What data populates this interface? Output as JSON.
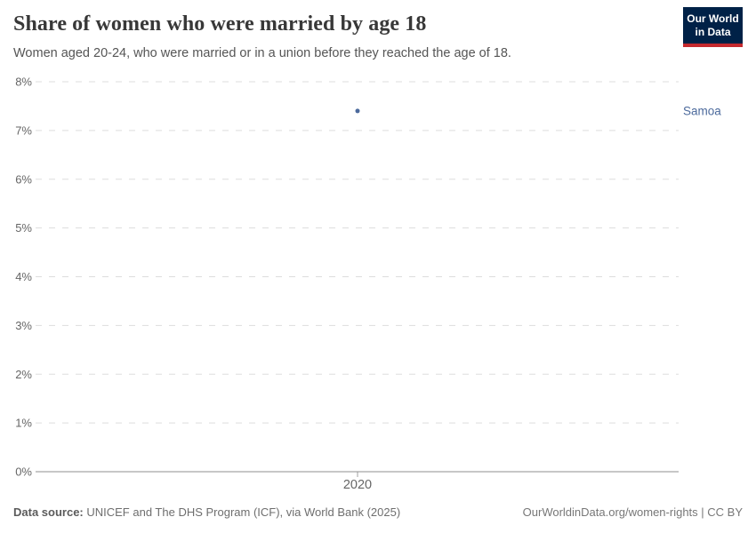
{
  "header": {
    "title": "Share of women who were married by age 18",
    "subtitle": "Women aged 20-24, who were married or in a union before they reached the age of 18.",
    "logo": {
      "line1": "Our World",
      "line2": "in Data"
    }
  },
  "chart_data": {
    "type": "scatter",
    "title": "Share of women who were married by age 18",
    "subtitle": "Women aged 20-24, who were married or in a union before they reached the age of 18.",
    "xlabel": "",
    "ylabel": "",
    "ylim": [
      0,
      8
    ],
    "grid": "horizontal-dashed",
    "legend": "entity-label-right",
    "y_ticks": [
      {
        "value": 0,
        "label": "0%"
      },
      {
        "value": 1,
        "label": "1%"
      },
      {
        "value": 2,
        "label": "2%"
      },
      {
        "value": 3,
        "label": "3%"
      },
      {
        "value": 4,
        "label": "4%"
      },
      {
        "value": 5,
        "label": "5%"
      },
      {
        "value": 6,
        "label": "6%"
      },
      {
        "value": 7,
        "label": "7%"
      },
      {
        "value": 8,
        "label": "8%"
      }
    ],
    "x_ticks": [
      {
        "value": 2020,
        "label": "2020"
      }
    ],
    "series": [
      {
        "name": "Samoa",
        "color": "#4C6A9C",
        "points": [
          {
            "x": 2020,
            "y": 7.4
          }
        ]
      }
    ]
  },
  "footer": {
    "source_label": "Data source:",
    "source_text": " UNICEF and The DHS Program (ICF), via World Bank (2025)",
    "link_text": "OurWorldinData.org/women-rights | CC BY"
  },
  "colors": {
    "accent_blue": "#4C6A9C",
    "logo_navy": "#002147",
    "logo_red": "#C5292E",
    "grid": "#DDDDDD",
    "axis_line": "#8F8F8F",
    "tick_mark": "#A0A0A0",
    "tick_text": "#666666"
  }
}
